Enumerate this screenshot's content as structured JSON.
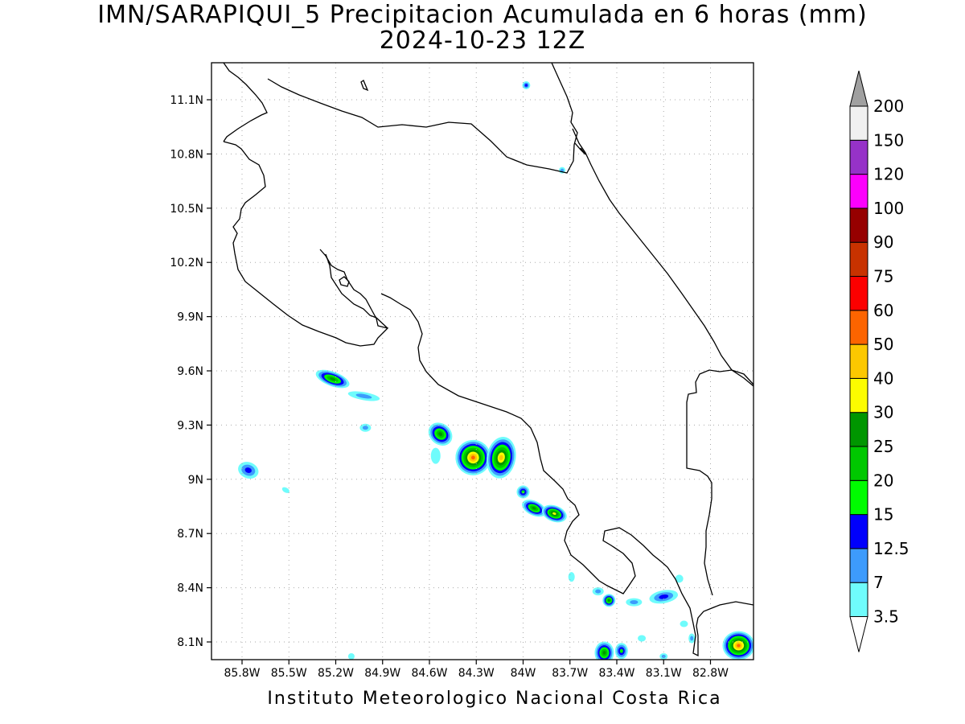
{
  "title": "IMN/SARAPIQUI_5 Precipitacion Acumulada en 6 horas (mm)",
  "subtitle": "2024-10-23 12Z",
  "footer": "Instituto Meteorologico Nacional Costa Rica",
  "lon_ticks": [
    "85.8W",
    "85.5W",
    "85.2W",
    "84.9W",
    "84.6W",
    "84.3W",
    "84W",
    "83.7W",
    "83.4W",
    "83.1W",
    "82.8W"
  ],
  "lat_ticks": [
    "11.1N",
    "10.8N",
    "10.5N",
    "10.2N",
    "9.9N",
    "9.6N",
    "9.3N",
    "9N",
    "8.7N",
    "8.4N",
    "8.1N"
  ],
  "colorbar": {
    "labels": [
      "3.5",
      "7",
      "12.5",
      "15",
      "20",
      "25",
      "30",
      "40",
      "50",
      "60",
      "75",
      "90",
      "100",
      "120",
      "150",
      "200"
    ],
    "colors": [
      "#6ffcfc",
      "#3d9bfc",
      "#0000fc",
      "#00fc00",
      "#00c800",
      "#009600",
      "#fcfc00",
      "#fcc800",
      "#fc6400",
      "#fc0000",
      "#c83200",
      "#960000",
      "#fc00fc",
      "#9632c8",
      "#f0f0f0"
    ],
    "over_color": "#a0a0a0"
  },
  "precip_cells": [
    {
      "lon": -85.22,
      "lat": 9.555,
      "rx": 22,
      "ry": 9,
      "rot": 20,
      "level": 5
    },
    {
      "lon": -85.02,
      "lat": 9.46,
      "rx": 20,
      "ry": 5,
      "rot": 10,
      "level": 1
    },
    {
      "lon": -85.01,
      "lat": 9.285,
      "rx": 7,
      "ry": 5,
      "rot": 0,
      "level": 1
    },
    {
      "lon": -85.76,
      "lat": 9.05,
      "rx": 13,
      "ry": 10,
      "rot": 20,
      "level": 2
    },
    {
      "lon": -85.52,
      "lat": 8.94,
      "rx": 5,
      "ry": 3,
      "rot": 30,
      "level": 0
    },
    {
      "lon": -84.53,
      "lat": 9.25,
      "rx": 16,
      "ry": 13,
      "rot": 40,
      "level": 5
    },
    {
      "lon": -84.56,
      "lat": 9.13,
      "rx": 6,
      "ry": 10,
      "rot": 0,
      "level": 0
    },
    {
      "lon": -84.32,
      "lat": 9.12,
      "rx": 22,
      "ry": 22,
      "rot": 30,
      "level": 8
    },
    {
      "lon": -84.14,
      "lat": 9.12,
      "rx": 18,
      "ry": 26,
      "rot": 10,
      "level": 7
    },
    {
      "lon": -84.0,
      "lat": 8.93,
      "rx": 8,
      "ry": 8,
      "rot": 0,
      "level": 3
    },
    {
      "lon": -83.93,
      "lat": 8.84,
      "rx": 16,
      "ry": 9,
      "rot": 25,
      "level": 5
    },
    {
      "lon": -83.8,
      "lat": 8.81,
      "rx": 16,
      "ry": 10,
      "rot": 20,
      "level": 6
    },
    {
      "lon": -83.75,
      "lat": 10.71,
      "rx": 4,
      "ry": 4,
      "rot": 0,
      "level": 1
    },
    {
      "lon": -83.98,
      "lat": 11.18,
      "rx": 5,
      "ry": 5,
      "rot": 0,
      "level": 2
    },
    {
      "lon": -83.69,
      "lat": 8.46,
      "rx": 4,
      "ry": 6,
      "rot": 0,
      "level": 0
    },
    {
      "lon": -83.52,
      "lat": 8.38,
      "rx": 7,
      "ry": 5,
      "rot": 0,
      "level": 1
    },
    {
      "lon": -83.45,
      "lat": 8.33,
      "rx": 8,
      "ry": 8,
      "rot": 0,
      "level": 5
    },
    {
      "lon": -83.29,
      "lat": 8.32,
      "rx": 10,
      "ry": 5,
      "rot": 0,
      "level": 1
    },
    {
      "lon": -83.1,
      "lat": 8.35,
      "rx": 18,
      "ry": 8,
      "rot": -10,
      "level": 2
    },
    {
      "lon": -83.0,
      "lat": 8.45,
      "rx": 5,
      "ry": 5,
      "rot": 0,
      "level": 0
    },
    {
      "lon": -82.97,
      "lat": 8.2,
      "rx": 5,
      "ry": 4,
      "rot": 0,
      "level": 0
    },
    {
      "lon": -82.92,
      "lat": 8.12,
      "rx": 4,
      "ry": 6,
      "rot": 0,
      "level": 1
    },
    {
      "lon": -83.24,
      "lat": 8.12,
      "rx": 5,
      "ry": 4,
      "rot": 0,
      "level": 0
    },
    {
      "lon": -83.48,
      "lat": 8.04,
      "rx": 12,
      "ry": 14,
      "rot": 0,
      "level": 5
    },
    {
      "lon": -83.37,
      "lat": 8.05,
      "rx": 8,
      "ry": 10,
      "rot": 0,
      "level": 3
    },
    {
      "lon": -83.1,
      "lat": 8.02,
      "rx": 5,
      "ry": 4,
      "rot": 0,
      "level": 1
    },
    {
      "lon": -82.62,
      "lat": 8.08,
      "rx": 20,
      "ry": 18,
      "rot": 0,
      "level": 8
    },
    {
      "lon": -85.1,
      "lat": 8.02,
      "rx": 4,
      "ry": 4,
      "rot": 0,
      "level": 0
    }
  ]
}
